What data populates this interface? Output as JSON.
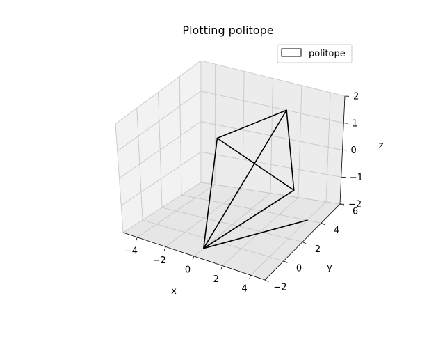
{
  "chart_data": {
    "type": "line3d",
    "title": "Plotting politope",
    "xlabel": "x",
    "ylabel": "y",
    "zlabel": "z",
    "xlim": [
      -5,
      5
    ],
    "ylim": [
      -2,
      6
    ],
    "zlim": [
      -2,
      2
    ],
    "xticks": [
      -4,
      -2,
      0,
      2,
      4
    ],
    "yticks": [
      -2,
      0,
      2,
      4,
      6
    ],
    "zticks": [
      -2,
      -1,
      0,
      1,
      2
    ],
    "xtick_labels": [
      "−4",
      "−2",
      "0",
      "2",
      "4"
    ],
    "ytick_labels": [
      "−2",
      "0",
      "2",
      "4",
      "6"
    ],
    "ztick_labels": [
      "−2",
      "−1",
      "0",
      "1",
      "2"
    ],
    "grid": true,
    "legend": {
      "position": "top-right",
      "entries": [
        "politope"
      ]
    },
    "series": [
      {
        "name": "politope",
        "color": "#000000",
        "vertices": {
          "A": [
            -1,
            2,
            1
          ],
          "B": [
            1,
            6,
            1
          ],
          "C": [
            0,
            -1,
            -2
          ],
          "D": [
            3,
            4,
            -1
          ],
          "E": [
            4,
            4,
            -2
          ]
        },
        "edges": [
          [
            "A",
            "B"
          ],
          [
            "B",
            "D"
          ],
          [
            "D",
            "A"
          ],
          [
            "A",
            "C"
          ],
          [
            "C",
            "B"
          ],
          [
            "C",
            "D"
          ],
          [
            "C",
            "E"
          ]
        ]
      }
    ]
  }
}
